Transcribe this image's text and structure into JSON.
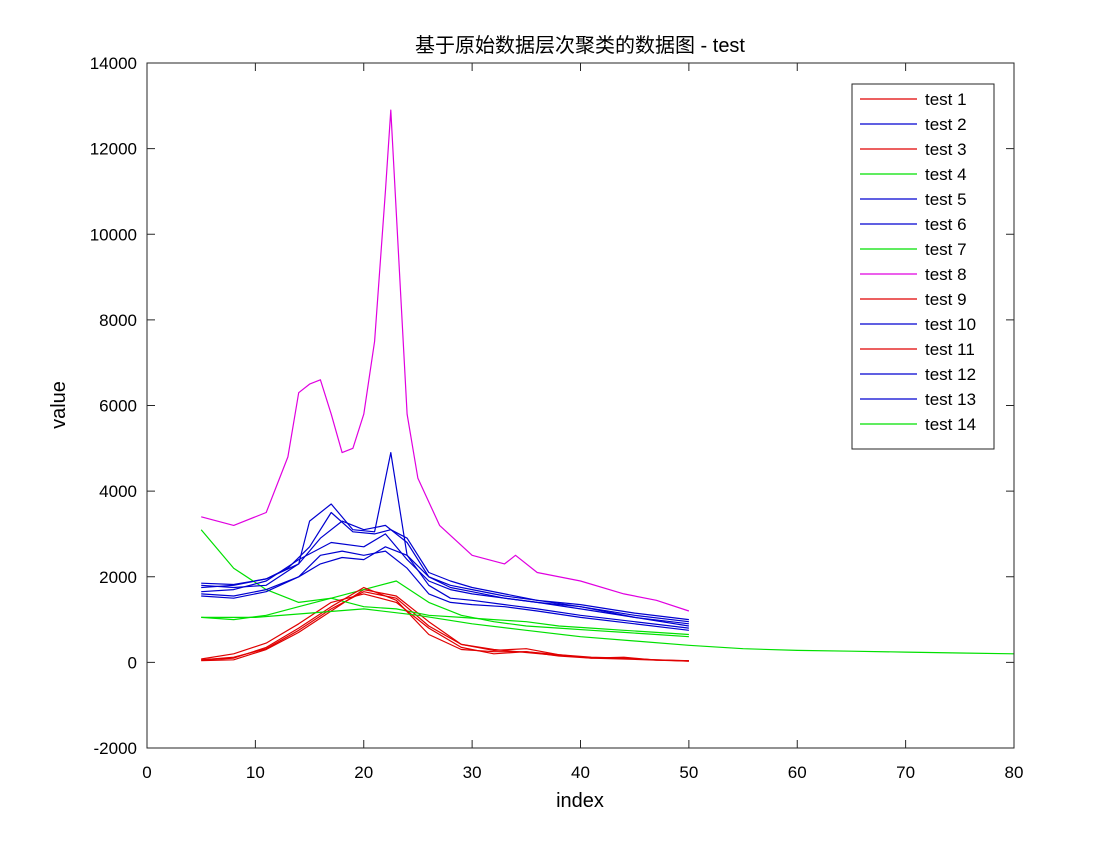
{
  "chart_data": {
    "type": "line",
    "title": "基于原始数据层次聚类的数据图 - test",
    "xlabel": "index",
    "ylabel": "value",
    "xlim": [
      0,
      80
    ],
    "ylim": [
      -2000,
      14000
    ],
    "xticks": [
      0,
      10,
      20,
      30,
      40,
      50,
      60,
      70,
      80
    ],
    "yticks": [
      -2000,
      0,
      2000,
      4000,
      6000,
      8000,
      10000,
      12000,
      14000
    ],
    "xtick_labels": [
      "0",
      "10",
      "20",
      "30",
      "40",
      "50",
      "60",
      "70",
      "80"
    ],
    "ytick_labels": [
      "-2000",
      "0",
      "2000",
      "4000",
      "6000",
      "8000",
      "10000",
      "12000",
      "14000"
    ],
    "grid": false,
    "legend_position": "top-right",
    "series": [
      {
        "name": "test 1",
        "color": "#e00000",
        "x": [
          5,
          8,
          11,
          14,
          17,
          20,
          23,
          26,
          29,
          32,
          35,
          38,
          41,
          44,
          47,
          50
        ],
        "y": [
          60,
          120,
          320,
          750,
          1250,
          1650,
          1500,
          850,
          420,
          300,
          230,
          160,
          110,
          90,
          60,
          40
        ]
      },
      {
        "name": "test 2",
        "color": "#0000d0",
        "x": [
          5,
          8,
          11,
          13,
          15,
          17,
          19,
          21,
          22.5,
          24,
          26,
          28,
          30,
          33,
          36,
          40,
          45,
          50
        ],
        "y": [
          1850,
          1820,
          1950,
          2200,
          2700,
          3500,
          3050,
          3000,
          3100,
          2900,
          2100,
          1900,
          1750,
          1600,
          1450,
          1350,
          1150,
          1000
        ]
      },
      {
        "name": "test 3",
        "color": "#e00000",
        "x": [
          5,
          8,
          11,
          14,
          17,
          20,
          23,
          26,
          29,
          32,
          35,
          38,
          41,
          44,
          47,
          50
        ],
        "y": [
          40,
          60,
          300,
          700,
          1200,
          1700,
          1550,
          950,
          420,
          280,
          320,
          180,
          120,
          100,
          60,
          30
        ]
      },
      {
        "name": "test 4",
        "color": "#00e000",
        "x": [
          5,
          8,
          11,
          14,
          17,
          20,
          23,
          26,
          29,
          32,
          35,
          38,
          41,
          44,
          47,
          50
        ],
        "y": [
          3100,
          2200,
          1700,
          1400,
          1500,
          1300,
          1250,
          1100,
          1050,
          1000,
          950,
          850,
          800,
          750,
          700,
          650
        ]
      },
      {
        "name": "test 5",
        "color": "#0000d0",
        "x": [
          5,
          8,
          11,
          14,
          15,
          17,
          19,
          21,
          22.5,
          24,
          26,
          28,
          30,
          33,
          36,
          40,
          45,
          50
        ],
        "y": [
          1800,
          1750,
          1800,
          2300,
          3300,
          3700,
          3100,
          3050,
          4900,
          2500,
          2000,
          1800,
          1700,
          1550,
          1450,
          1300,
          1050,
          850
        ]
      },
      {
        "name": "test 6",
        "color": "#0000d0",
        "x": [
          5,
          8,
          11,
          14,
          16,
          18,
          20,
          22,
          24,
          26,
          28,
          30,
          33,
          36,
          40,
          45,
          50
        ],
        "y": [
          1600,
          1550,
          1700,
          2000,
          2300,
          2450,
          2400,
          2700,
          2500,
          1800,
          1500,
          1450,
          1350,
          1250,
          1100,
          950,
          800
        ]
      },
      {
        "name": "test 7",
        "color": "#00e000",
        "x": [
          5,
          8,
          11,
          14,
          17,
          20,
          23,
          26,
          29,
          32,
          35,
          38,
          41,
          44,
          47,
          50
        ],
        "y": [
          1050,
          1000,
          1100,
          1300,
          1500,
          1700,
          1900,
          1400,
          1100,
          950,
          850,
          800,
          750,
          700,
          650,
          600
        ]
      },
      {
        "name": "test 8",
        "color": "#e000e0",
        "x": [
          5,
          8,
          11,
          13,
          14,
          15,
          16,
          17,
          18,
          19,
          20,
          21,
          22,
          22.5,
          23,
          24,
          25,
          27,
          30,
          33,
          34,
          36,
          40,
          44,
          47,
          50
        ],
        "y": [
          3400,
          3200,
          3500,
          4800,
          6300,
          6500,
          6600,
          5800,
          4900,
          5000,
          5800,
          7500,
          11000,
          12900,
          10500,
          5800,
          4300,
          3200,
          2500,
          2300,
          2500,
          2100,
          1900,
          1600,
          1450,
          1200
        ]
      },
      {
        "name": "test 9",
        "color": "#e00000",
        "x": [
          5,
          8,
          11,
          14,
          17,
          20,
          23,
          26,
          29,
          32,
          35,
          38,
          41,
          44,
          47,
          50
        ],
        "y": [
          80,
          200,
          450,
          900,
          1400,
          1600,
          1400,
          800,
          350,
          200,
          250,
          150,
          100,
          120,
          50,
          30
        ]
      },
      {
        "name": "test 10",
        "color": "#0000d0",
        "x": [
          5,
          8,
          11,
          14,
          17,
          20,
          22,
          24,
          26,
          28,
          30,
          33,
          36,
          40,
          45,
          50
        ],
        "y": [
          1650,
          1700,
          1900,
          2400,
          2800,
          2700,
          3000,
          2400,
          1900,
          1700,
          1600,
          1500,
          1400,
          1250,
          1050,
          900
        ]
      },
      {
        "name": "test 11",
        "color": "#e00000",
        "x": [
          5,
          8,
          11,
          14,
          17,
          20,
          23,
          26,
          29,
          32,
          35,
          38,
          41,
          44,
          47,
          50
        ],
        "y": [
          50,
          100,
          350,
          800,
          1300,
          1750,
          1450,
          650,
          300,
          250,
          250,
          180,
          100,
          80,
          50,
          40
        ]
      },
      {
        "name": "test 12",
        "color": "#0000d0",
        "x": [
          5,
          8,
          11,
          14,
          16,
          18,
          20,
          22,
          24,
          26,
          28,
          30,
          33,
          36,
          40,
          45,
          50
        ],
        "y": [
          1750,
          1800,
          1950,
          2300,
          2900,
          3300,
          3100,
          3200,
          2800,
          2000,
          1750,
          1650,
          1500,
          1400,
          1300,
          1100,
          950
        ]
      },
      {
        "name": "test 13",
        "color": "#0000d0",
        "x": [
          5,
          8,
          11,
          14,
          16,
          18,
          20,
          22,
          24,
          26,
          28,
          30,
          33,
          36,
          40,
          45,
          50
        ],
        "y": [
          1550,
          1500,
          1650,
          2000,
          2500,
          2600,
          2500,
          2600,
          2200,
          1600,
          1400,
          1350,
          1300,
          1200,
          1050,
          900,
          750
        ]
      },
      {
        "name": "test 14",
        "color": "#00e000",
        "x": [
          5,
          10,
          15,
          20,
          25,
          30,
          35,
          40,
          45,
          50,
          55,
          60,
          65,
          70,
          75,
          80
        ],
        "y": [
          1050,
          1050,
          1150,
          1250,
          1100,
          900,
          750,
          600,
          500,
          400,
          320,
          280,
          260,
          240,
          220,
          200
        ]
      }
    ]
  }
}
